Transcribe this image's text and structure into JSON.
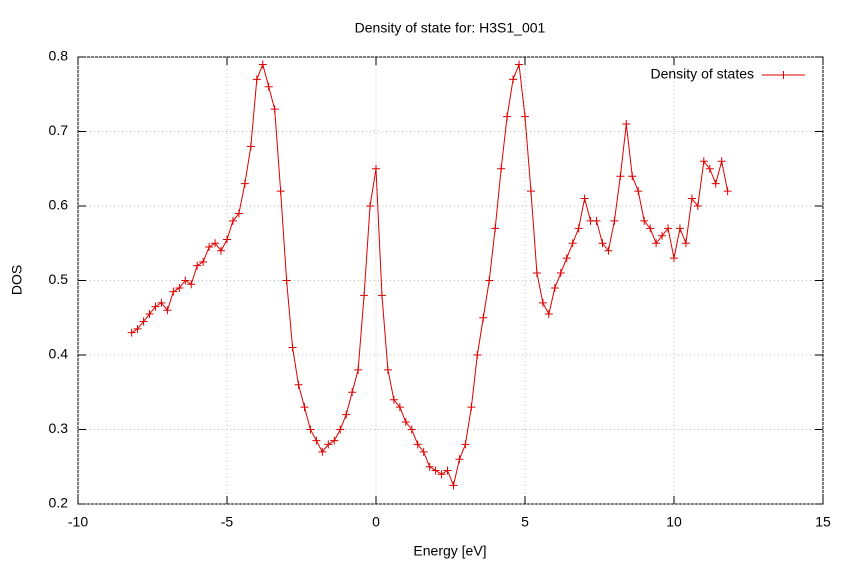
{
  "chart_data": {
    "type": "line",
    "title": "Density of state for: H3S1_001",
    "x_label": "Energy [eV]",
    "y_label": "DOS",
    "x": [
      -8.2,
      -8.0,
      -7.8,
      -7.6,
      -7.4,
      -7.2,
      -7.0,
      -6.8,
      -6.6,
      -6.4,
      -6.2,
      -6.0,
      -5.8,
      -5.6,
      -5.4,
      -5.2,
      -5.0,
      -4.8,
      -4.6,
      -4.4,
      -4.2,
      -4.0,
      -3.8,
      -3.6,
      -3.4,
      -3.2,
      -3.0,
      -2.8,
      -2.6,
      -2.4,
      -2.2,
      -2.0,
      -1.8,
      -1.6,
      -1.4,
      -1.2,
      -1.0,
      -0.8,
      -0.6,
      -0.4,
      -0.2,
      0.0,
      0.2,
      0.4,
      0.6,
      0.8,
      1.0,
      1.2,
      1.4,
      1.6,
      1.8,
      2.0,
      2.2,
      2.4,
      2.6,
      2.8,
      3.0,
      3.2,
      3.4,
      3.6,
      3.8,
      4.0,
      4.2,
      4.4,
      4.6,
      4.8,
      5.0,
      5.2,
      5.4,
      5.6,
      5.8,
      6.0,
      6.2,
      6.4,
      6.6,
      6.8,
      7.0,
      7.2,
      7.4,
      7.6,
      7.8,
      8.0,
      8.2,
      8.4,
      8.6,
      8.8,
      9.0,
      9.2,
      9.4,
      9.6,
      9.8,
      10.0,
      10.2,
      10.4,
      10.6,
      10.8,
      11.0,
      11.2,
      11.4,
      11.6,
      11.8
    ],
    "series": [
      {
        "name": "Density of states",
        "color": "#dd0000",
        "values": [
          0.43,
          0.435,
          0.445,
          0.455,
          0.465,
          0.47,
          0.46,
          0.485,
          0.49,
          0.5,
          0.495,
          0.52,
          0.525,
          0.545,
          0.55,
          0.54,
          0.555,
          0.58,
          0.59,
          0.63,
          0.68,
          0.77,
          0.79,
          0.76,
          0.73,
          0.62,
          0.5,
          0.41,
          0.36,
          0.33,
          0.3,
          0.285,
          0.27,
          0.28,
          0.285,
          0.3,
          0.32,
          0.35,
          0.38,
          0.48,
          0.6,
          0.65,
          0.48,
          0.38,
          0.34,
          0.33,
          0.31,
          0.3,
          0.28,
          0.27,
          0.25,
          0.245,
          0.24,
          0.245,
          0.225,
          0.26,
          0.28,
          0.33,
          0.4,
          0.45,
          0.5,
          0.57,
          0.65,
          0.72,
          0.77,
          0.79,
          0.72,
          0.62,
          0.51,
          0.47,
          0.455,
          0.49,
          0.51,
          0.53,
          0.55,
          0.57,
          0.61,
          0.58,
          0.58,
          0.55,
          0.54,
          0.58,
          0.64,
          0.71,
          0.64,
          0.62,
          0.58,
          0.57,
          0.55,
          0.56,
          0.57,
          0.53,
          0.57,
          0.55,
          0.61,
          0.6,
          0.66,
          0.65,
          0.63,
          0.66,
          0.62
        ]
      }
    ],
    "xlim": [
      -10,
      15
    ],
    "xticks": [
      -10,
      -5,
      0,
      5,
      10,
      15
    ],
    "ylim": [
      0.2,
      0.8
    ],
    "yticks": [
      0.2,
      0.3,
      0.4,
      0.5,
      0.6,
      0.7,
      0.8
    ],
    "grid": true,
    "legend": "top-right"
  }
}
